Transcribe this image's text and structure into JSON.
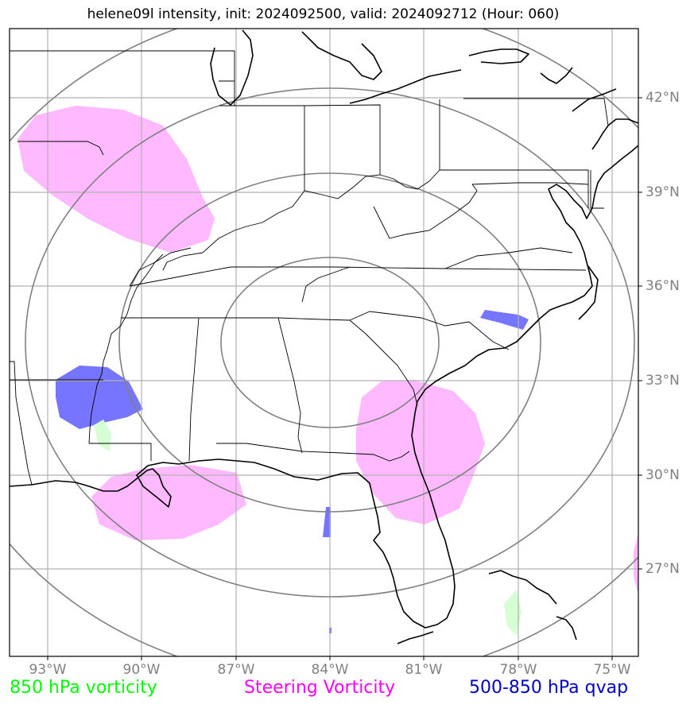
{
  "title": "helene09l intensity, init: 2024092500, valid: 2024092712 (Hour: 060)",
  "lat_labels": [
    "42°N",
    "39°N",
    "36°N",
    "33°N",
    "30°N",
    "27°N"
  ],
  "lon_labels": [
    "93°W",
    "90°W",
    "87°W",
    "84°W",
    "81°W",
    "78°W",
    "75°W"
  ],
  "legend": {
    "vort850": {
      "label": "850 hPa vorticity",
      "color": "#00ff00"
    },
    "steering": {
      "label": "Steering Vorticity",
      "color": "#ff00ff"
    },
    "qvap": {
      "label": "500-850 hPa qvap",
      "color": "#0000cc"
    }
  },
  "colors": {
    "steering_fill": "#ffb3ff",
    "qvap_fill": "#6666ff",
    "vort_fill": "#d6ffd6",
    "grid": "#b0b0b0",
    "rings": "#808080"
  }
}
